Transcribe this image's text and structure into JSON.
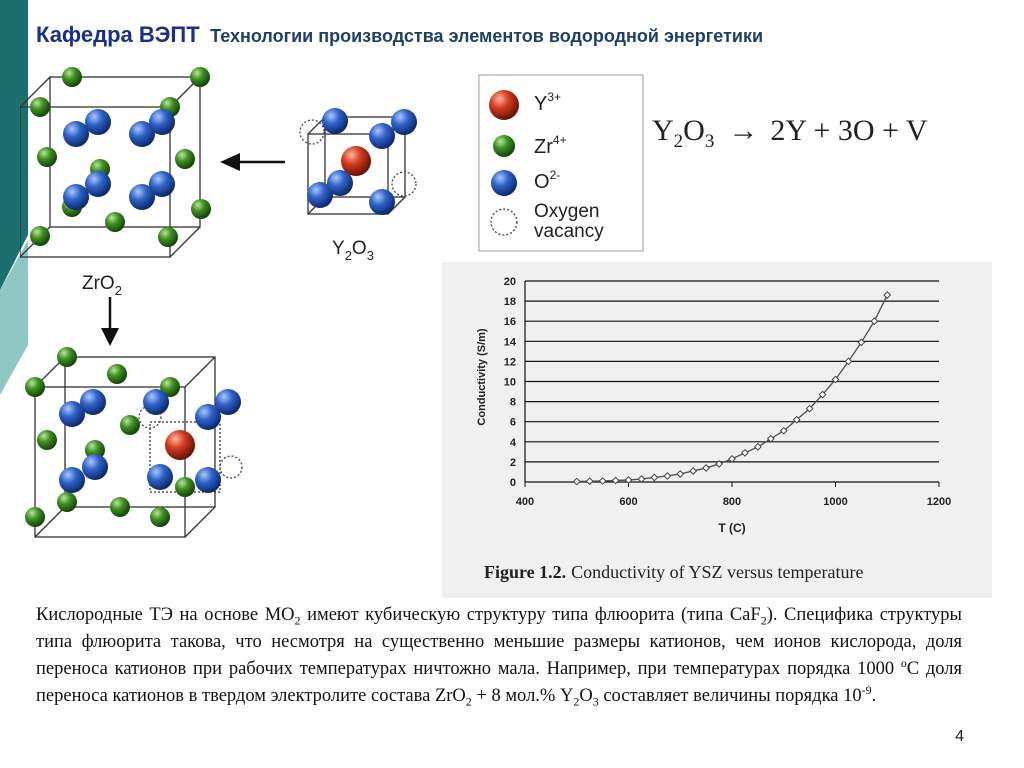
{
  "header": {
    "title_main": "Кафедра ВЭПТ",
    "title_sub": "Технологии производства элементов водородной энергетики"
  },
  "colors": {
    "title_blue": "#1a2f8c",
    "teal": "#1b6f6d",
    "light_teal": "#8fc7c3",
    "oxygen_ion": "#2f62c8",
    "zirconium_ion": "#3f8f22",
    "yttrium_ion": "#d23a1f"
  },
  "crystal": {
    "zro2_label": "ZrO",
    "zro2_sub": "2",
    "y2o3_label_a": "Y",
    "y2o3_sub_a": "2",
    "y2o3_label_b": "O",
    "y2o3_sub_b": "3"
  },
  "legend": {
    "items": [
      {
        "base": "Y",
        "sup": "3+",
        "icon": "yttrium-ion-icon"
      },
      {
        "base": "Zr",
        "sup": "4+",
        "icon": "zirconium-ion-icon"
      },
      {
        "base": "O",
        "sup": "2-",
        "icon": "oxygen-ion-icon"
      },
      {
        "base": "Oxygen",
        "line2": "vacancy",
        "icon": "oxygen-vacancy-icon"
      }
    ]
  },
  "equation": {
    "y": "Y",
    "sub2": "2",
    "o": "O",
    "sub3": "3",
    "arrow": "→",
    "rhs": "2Y + 3O + V"
  },
  "chart_data": {
    "type": "line",
    "title": "",
    "xlabel": "T (C)",
    "ylabel": "Conductivity (S/m)",
    "xlim": [
      400,
      1200
    ],
    "ylim": [
      0,
      20
    ],
    "x_ticks": [
      400,
      600,
      800,
      1000,
      1200
    ],
    "y_ticks": [
      0,
      2,
      4,
      6,
      8,
      10,
      12,
      14,
      16,
      18,
      20
    ],
    "grid": "horizontal",
    "caption_bold": "Figure 1.2.",
    "caption_rest": "Conductivity of YSZ versus temperature",
    "series": [
      {
        "x": [
          500,
          525,
          550,
          575,
          600,
          625,
          650,
          675,
          700,
          725,
          750,
          775,
          800,
          825,
          850,
          875,
          900,
          925,
          950,
          975,
          1000,
          1025,
          1050,
          1075,
          1100
        ],
        "values": [
          0.05,
          0.08,
          0.1,
          0.15,
          0.2,
          0.3,
          0.45,
          0.6,
          0.8,
          1.1,
          1.4,
          1.8,
          2.3,
          2.9,
          3.5,
          4.3,
          5.1,
          6.2,
          7.3,
          8.7,
          10.2,
          12.0,
          13.9,
          16.0,
          18.6
        ]
      }
    ]
  },
  "body": {
    "p1": "Кислородные ТЭ на основе МО",
    "p1_sub": "2",
    "p2": " имеют кубическую структуру типа флюорита (типа CaF",
    "p2_sub": "2",
    "p3": "). Специфика структуры типа флюорита такова, что несмотря на существенно меньшие размеры катионов, чем ионов кислорода, доля переноса катионов при рабочих температурах ничтожно мала. Например, при температурах порядка 1000 ºС доля переноса катионов в твердом электролите состава ZrO",
    "p3_sub": "2",
    "p4": " + 8 мол.% Y",
    "p4_sub": "2",
    "p5": "O",
    "p5_sub": "3",
    "p6": " составляет величины порядка 10",
    "p6_sup": "-9",
    "p7": "."
  },
  "page_number": "4"
}
